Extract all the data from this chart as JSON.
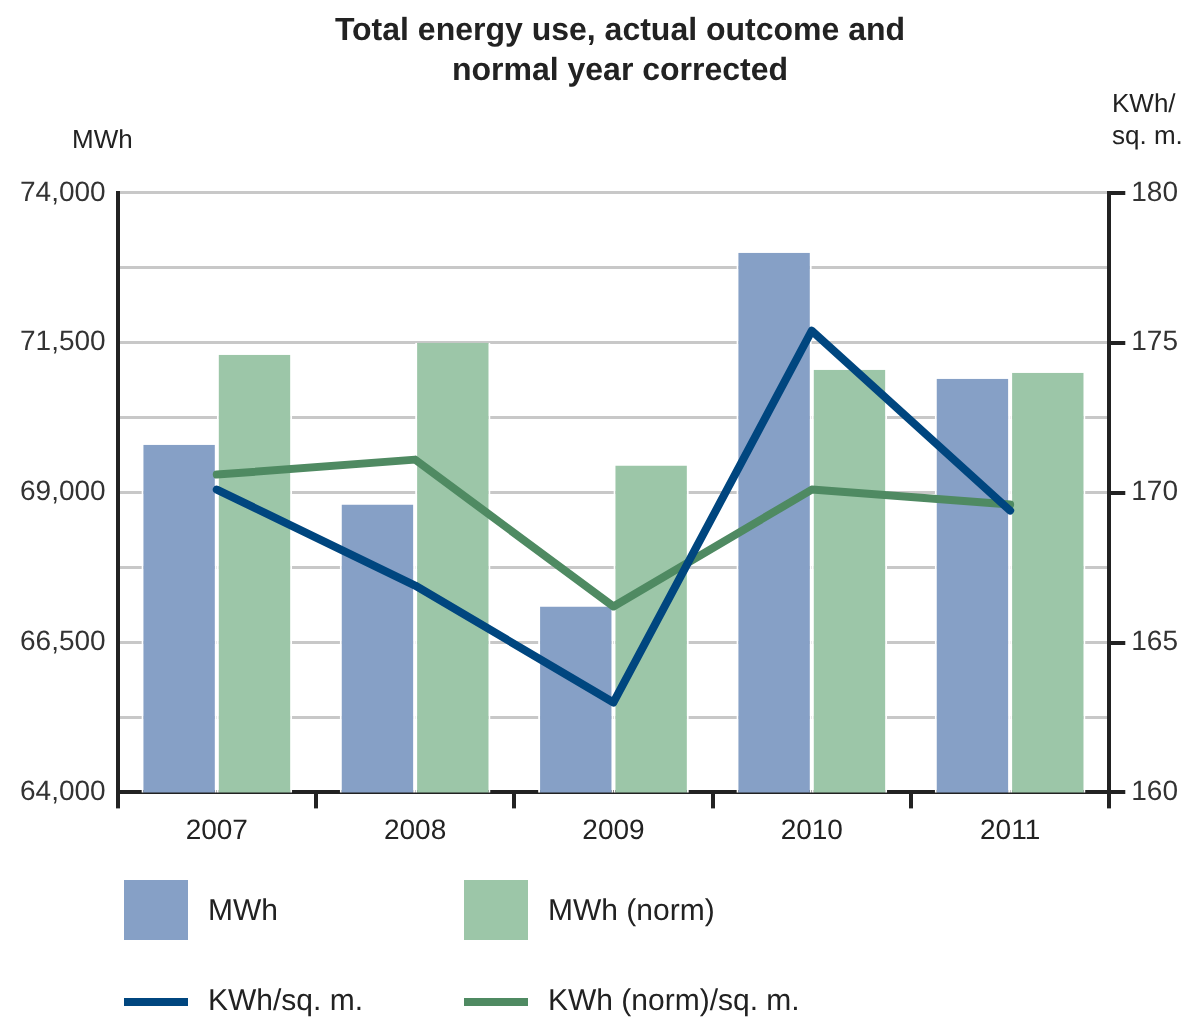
{
  "chart_data": {
    "type": "bar",
    "title": "Total energy use, actual outcome and normal year corrected",
    "ylabel": "MWh",
    "y2label": "KWh/ sq. m.",
    "categories": [
      "2007",
      "2008",
      "2009",
      "2010",
      "2011"
    ],
    "series": [
      {
        "name": "MWh",
        "color": "#86a0c6",
        "values": [
          69800,
          68800,
          67100,
          73000,
          70900
        ]
      },
      {
        "name": "MWh (norm)",
        "color": "#9cc6a8",
        "values": [
          71300,
          71500,
          69450,
          71050,
          71000
        ]
      },
      {
        "name": "KWh/sq. m.",
        "type": "line",
        "axis": "y2",
        "color": "#00467f",
        "values": [
          170.1,
          166.9,
          163.0,
          175.4,
          169.4
        ]
      },
      {
        "name": "KWh (norm)/sq. m.",
        "type": "line",
        "axis": "y2",
        "color": "#4f8a62",
        "values": [
          170.6,
          171.1,
          166.2,
          170.1,
          169.6
        ]
      }
    ],
    "ylim": [
      64000,
      74000
    ],
    "yticks": [
      {
        "value": 64000,
        "label": "64,000"
      },
      {
        "value": 65250,
        "label": null
      },
      {
        "value": 66500,
        "label": "66,500"
      },
      {
        "value": 67750,
        "label": null
      },
      {
        "value": 69000,
        "label": "69,000"
      },
      {
        "value": 70250,
        "label": null
      },
      {
        "value": 71500,
        "label": "71,500"
      },
      {
        "value": 72750,
        "label": null
      },
      {
        "value": 74000,
        "label": "74,000"
      }
    ],
    "y2lim": [
      160,
      180
    ],
    "y2ticks": [
      160,
      165,
      170,
      175,
      180
    ],
    "grid": "y",
    "legend": "bottom",
    "marker": "none",
    "line_style": "solid"
  }
}
